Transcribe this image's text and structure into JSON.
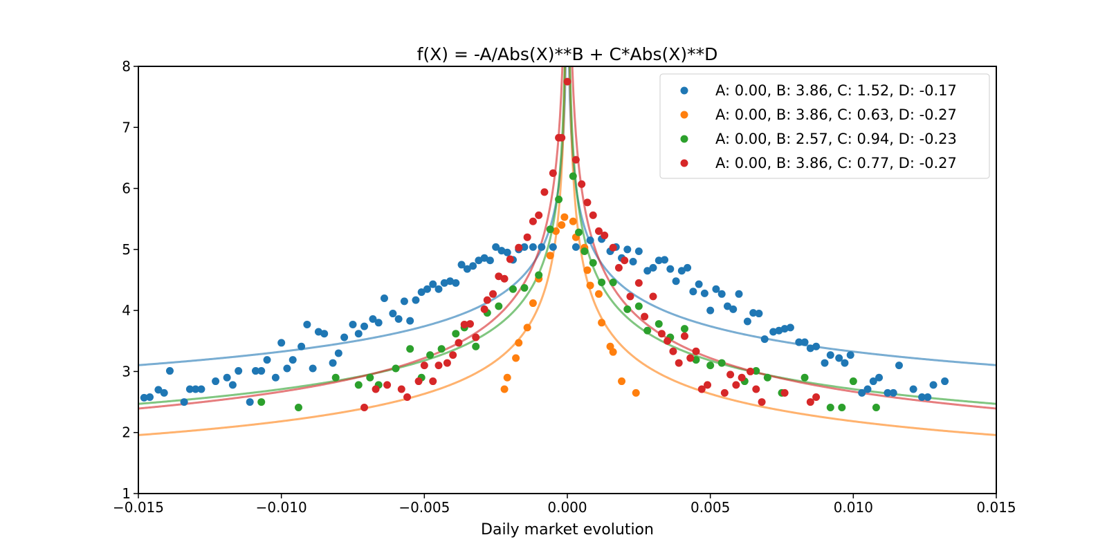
{
  "chart_data": {
    "type": "scatter",
    "title": "f(X) = -A/Abs(X)**B + C*Abs(X)**D",
    "xlabel": "Daily market evolution",
    "ylabel": "",
    "xlim": [
      -0.015,
      0.015
    ],
    "ylim": [
      1,
      8
    ],
    "xticks": [
      -0.015,
      -0.01,
      -0.005,
      0.0,
      0.005,
      0.01,
      0.015
    ],
    "xtick_labels": [
      "−0.015",
      "−0.010",
      "−0.005",
      "0.000",
      "0.005",
      "0.010",
      "0.015"
    ],
    "yticks": [
      1,
      2,
      3,
      4,
      5,
      6,
      7,
      8
    ],
    "ytick_labels": [
      "1",
      "2",
      "3",
      "4",
      "5",
      "6",
      "7",
      "8"
    ],
    "grid": false,
    "legend_position": "top-right",
    "series": [
      {
        "name": "A: 0.00, B: 3.86, C: 1.52, D: -0.17",
        "color": "#1f77b4",
        "fit": {
          "A": 0.0,
          "B": 3.86,
          "C": 1.52,
          "D": -0.17
        },
        "points": [
          [
            -0.0148,
            2.57
          ],
          [
            -0.0146,
            2.58
          ],
          [
            -0.0143,
            2.7
          ],
          [
            -0.0141,
            2.65
          ],
          [
            -0.0139,
            3.01
          ],
          [
            -0.0134,
            2.5
          ],
          [
            -0.0132,
            2.71
          ],
          [
            -0.013,
            2.71
          ],
          [
            -0.0128,
            2.71
          ],
          [
            -0.0123,
            2.84
          ],
          [
            -0.0119,
            2.9
          ],
          [
            -0.0117,
            2.78
          ],
          [
            -0.0115,
            3.01
          ],
          [
            -0.0111,
            2.5
          ],
          [
            -0.0109,
            3.01
          ],
          [
            -0.0107,
            3.01
          ],
          [
            -0.0105,
            3.19
          ],
          [
            -0.0102,
            2.9
          ],
          [
            -0.01,
            3.47
          ],
          [
            -0.0098,
            3.05
          ],
          [
            -0.0096,
            3.19
          ],
          [
            -0.0093,
            3.41
          ],
          [
            -0.0091,
            3.77
          ],
          [
            -0.0089,
            3.05
          ],
          [
            -0.0087,
            3.65
          ],
          [
            -0.0085,
            3.62
          ],
          [
            -0.0082,
            3.14
          ],
          [
            -0.008,
            3.3
          ],
          [
            -0.0078,
            3.56
          ],
          [
            -0.0075,
            3.77
          ],
          [
            -0.0073,
            3.62
          ],
          [
            -0.0071,
            3.74
          ],
          [
            -0.0068,
            3.86
          ],
          [
            -0.0066,
            3.8
          ],
          [
            -0.0064,
            4.2
          ],
          [
            -0.0061,
            3.95
          ],
          [
            -0.0059,
            3.86
          ],
          [
            -0.0057,
            4.15
          ],
          [
            -0.0055,
            3.83
          ],
          [
            -0.0053,
            4.17
          ],
          [
            -0.0051,
            4.3
          ],
          [
            -0.0049,
            4.35
          ],
          [
            -0.0047,
            4.43
          ],
          [
            -0.0045,
            4.35
          ],
          [
            -0.0043,
            4.45
          ],
          [
            -0.0041,
            4.48
          ],
          [
            -0.0039,
            4.45
          ],
          [
            -0.0037,
            4.75
          ],
          [
            -0.0035,
            4.68
          ],
          [
            -0.0033,
            4.73
          ],
          [
            -0.0031,
            4.82
          ],
          [
            -0.0029,
            4.86
          ],
          [
            -0.0027,
            4.82
          ],
          [
            -0.0025,
            5.04
          ],
          [
            -0.0023,
            4.98
          ],
          [
            -0.0021,
            4.95
          ],
          [
            -0.0019,
            4.83
          ],
          [
            -0.0017,
            5.0
          ],
          [
            -0.0015,
            5.04
          ],
          [
            -0.0012,
            5.04
          ],
          [
            -0.0009,
            5.04
          ],
          [
            -0.0005,
            5.04
          ],
          [
            0.0003,
            5.04
          ],
          [
            0.0008,
            5.15
          ],
          [
            0.0012,
            5.17
          ],
          [
            0.0015,
            4.97
          ],
          [
            0.0017,
            5.04
          ],
          [
            0.0019,
            4.86
          ],
          [
            0.0021,
            5.0
          ],
          [
            0.0023,
            4.8
          ],
          [
            0.0025,
            4.97
          ],
          [
            0.0028,
            4.65
          ],
          [
            0.003,
            4.7
          ],
          [
            0.0032,
            4.82
          ],
          [
            0.0034,
            4.83
          ],
          [
            0.0036,
            4.68
          ],
          [
            0.0038,
            4.48
          ],
          [
            0.004,
            4.65
          ],
          [
            0.0042,
            4.7
          ],
          [
            0.0044,
            4.31
          ],
          [
            0.0046,
            4.43
          ],
          [
            0.0048,
            4.28
          ],
          [
            0.005,
            4.0
          ],
          [
            0.0052,
            4.35
          ],
          [
            0.0054,
            4.27
          ],
          [
            0.0056,
            4.07
          ],
          [
            0.0058,
            4.02
          ],
          [
            0.006,
            4.27
          ],
          [
            0.0063,
            3.82
          ],
          [
            0.0065,
            3.96
          ],
          [
            0.0067,
            3.95
          ],
          [
            0.0069,
            3.53
          ],
          [
            0.0072,
            3.65
          ],
          [
            0.0074,
            3.67
          ],
          [
            0.0076,
            3.7
          ],
          [
            0.0078,
            3.72
          ],
          [
            0.0081,
            3.48
          ],
          [
            0.0083,
            3.48
          ],
          [
            0.0085,
            3.38
          ],
          [
            0.0087,
            3.41
          ],
          [
            0.009,
            3.14
          ],
          [
            0.0092,
            3.27
          ],
          [
            0.0095,
            3.22
          ],
          [
            0.0097,
            3.14
          ],
          [
            0.0099,
            3.27
          ],
          [
            0.0103,
            2.65
          ],
          [
            0.0105,
            2.71
          ],
          [
            0.0107,
            2.84
          ],
          [
            0.0109,
            2.9
          ],
          [
            0.0112,
            2.65
          ],
          [
            0.0114,
            2.65
          ],
          [
            0.0116,
            3.1
          ],
          [
            0.0121,
            2.71
          ],
          [
            0.0124,
            2.58
          ],
          [
            0.0126,
            2.58
          ],
          [
            0.0128,
            2.78
          ],
          [
            0.0132,
            2.84
          ]
        ]
      },
      {
        "name": "A: 0.00, B: 3.86, C: 0.63, D: -0.27",
        "color": "#ff7f0e",
        "fit": {
          "A": 0.0,
          "B": 3.86,
          "C": 0.63,
          "D": -0.27
        },
        "points": [
          [
            -0.0022,
            2.71
          ],
          [
            -0.0021,
            2.9
          ],
          [
            -0.0018,
            3.22
          ],
          [
            -0.0017,
            3.47
          ],
          [
            -0.0014,
            3.72
          ],
          [
            -0.0012,
            4.12
          ],
          [
            -0.001,
            4.52
          ],
          [
            -0.0006,
            4.9
          ],
          [
            -0.0004,
            5.3
          ],
          [
            -0.0002,
            5.4
          ],
          [
            -0.0001,
            5.53
          ],
          [
            0.0002,
            5.46
          ],
          [
            0.0003,
            5.2
          ],
          [
            0.0006,
            5.03
          ],
          [
            0.0007,
            4.66
          ],
          [
            0.0008,
            4.41
          ],
          [
            0.0011,
            4.27
          ],
          [
            0.0012,
            3.8
          ],
          [
            0.0015,
            3.41
          ],
          [
            0.0016,
            3.32
          ],
          [
            0.0019,
            2.84
          ],
          [
            0.0024,
            2.65
          ]
        ]
      },
      {
        "name": "A: 0.00, B: 2.57, C: 0.94, D: -0.23",
        "color": "#2ca02c",
        "fit": {
          "A": 0.0,
          "B": 2.57,
          "C": 0.94,
          "D": -0.23
        },
        "points": [
          [
            -0.0107,
            2.5
          ],
          [
            -0.0094,
            2.41
          ],
          [
            -0.0081,
            2.9
          ],
          [
            -0.0073,
            2.78
          ],
          [
            -0.0069,
            2.9
          ],
          [
            -0.0066,
            2.78
          ],
          [
            -0.006,
            3.05
          ],
          [
            -0.0055,
            3.37
          ],
          [
            -0.0051,
            2.9
          ],
          [
            -0.0048,
            3.27
          ],
          [
            -0.0044,
            3.37
          ],
          [
            -0.0039,
            3.62
          ],
          [
            -0.0036,
            3.72
          ],
          [
            -0.0032,
            3.41
          ],
          [
            -0.0028,
            3.96
          ],
          [
            -0.0024,
            4.07
          ],
          [
            -0.0019,
            4.35
          ],
          [
            -0.0015,
            4.37
          ],
          [
            -0.001,
            4.58
          ],
          [
            -0.0006,
            5.33
          ],
          [
            -0.0003,
            5.82
          ],
          [
            0.0002,
            6.2
          ],
          [
            0.0004,
            5.28
          ],
          [
            0.0006,
            4.97
          ],
          [
            0.0009,
            4.78
          ],
          [
            0.0012,
            4.46
          ],
          [
            0.0016,
            4.46
          ],
          [
            0.0021,
            4.02
          ],
          [
            0.0025,
            4.07
          ],
          [
            0.0028,
            3.67
          ],
          [
            0.0032,
            3.78
          ],
          [
            0.0036,
            3.56
          ],
          [
            0.0041,
            3.7
          ],
          [
            0.0045,
            3.19
          ],
          [
            0.005,
            3.1
          ],
          [
            0.0054,
            3.14
          ],
          [
            0.0062,
            2.84
          ],
          [
            0.0066,
            3.01
          ],
          [
            0.007,
            2.9
          ],
          [
            0.0075,
            2.65
          ],
          [
            0.0083,
            2.9
          ],
          [
            0.0092,
            2.41
          ],
          [
            0.0096,
            2.41
          ],
          [
            0.01,
            2.84
          ],
          [
            0.0108,
            2.41
          ]
        ]
      },
      {
        "name": "A: 0.00, B: 3.86, C: 0.77, D: -0.27",
        "color": "#d62728",
        "fit": {
          "A": 0.0,
          "B": 3.86,
          "C": 0.77,
          "D": -0.27
        },
        "points": [
          [
            -0.0071,
            2.41
          ],
          [
            -0.0067,
            2.71
          ],
          [
            -0.0063,
            2.78
          ],
          [
            -0.0058,
            2.71
          ],
          [
            -0.0056,
            2.58
          ],
          [
            -0.0052,
            2.84
          ],
          [
            -0.005,
            3.1
          ],
          [
            -0.0047,
            2.84
          ],
          [
            -0.0045,
            3.1
          ],
          [
            -0.0042,
            3.14
          ],
          [
            -0.004,
            3.27
          ],
          [
            -0.0038,
            3.47
          ],
          [
            -0.0036,
            3.77
          ],
          [
            -0.0034,
            3.78
          ],
          [
            -0.0032,
            3.56
          ],
          [
            -0.0029,
            4.02
          ],
          [
            -0.0028,
            4.17
          ],
          [
            -0.0026,
            4.27
          ],
          [
            -0.0024,
            4.56
          ],
          [
            -0.0022,
            4.52
          ],
          [
            -0.002,
            4.84
          ],
          [
            -0.0017,
            5.03
          ],
          [
            -0.0014,
            5.2
          ],
          [
            -0.0012,
            5.46
          ],
          [
            -0.001,
            5.56
          ],
          [
            -0.0008,
            5.94
          ],
          [
            -0.0005,
            6.25
          ],
          [
            -0.0003,
            6.83
          ],
          [
            -0.0002,
            6.83
          ],
          [
            0.0,
            7.75
          ],
          [
            0.0003,
            6.47
          ],
          [
            0.0005,
            6.07
          ],
          [
            0.0007,
            5.77
          ],
          [
            0.0009,
            5.56
          ],
          [
            0.0011,
            5.3
          ],
          [
            0.0013,
            5.23
          ],
          [
            0.0016,
            5.03
          ],
          [
            0.0018,
            4.7
          ],
          [
            0.002,
            4.82
          ],
          [
            0.0022,
            4.23
          ],
          [
            0.0025,
            4.45
          ],
          [
            0.0027,
            3.9
          ],
          [
            0.003,
            4.23
          ],
          [
            0.0033,
            3.62
          ],
          [
            0.0035,
            3.5
          ],
          [
            0.0037,
            3.33
          ],
          [
            0.0039,
            3.14
          ],
          [
            0.0041,
            3.58
          ],
          [
            0.0043,
            3.22
          ],
          [
            0.0045,
            3.33
          ],
          [
            0.0047,
            2.71
          ],
          [
            0.0049,
            2.78
          ],
          [
            0.0055,
            2.65
          ],
          [
            0.0057,
            2.95
          ],
          [
            0.0059,
            2.78
          ],
          [
            0.0061,
            2.9
          ],
          [
            0.0064,
            3.0
          ],
          [
            0.0066,
            2.71
          ],
          [
            0.0068,
            2.5
          ],
          [
            0.0076,
            2.65
          ],
          [
            0.0085,
            2.5
          ],
          [
            0.0087,
            2.58
          ]
        ]
      }
    ]
  }
}
